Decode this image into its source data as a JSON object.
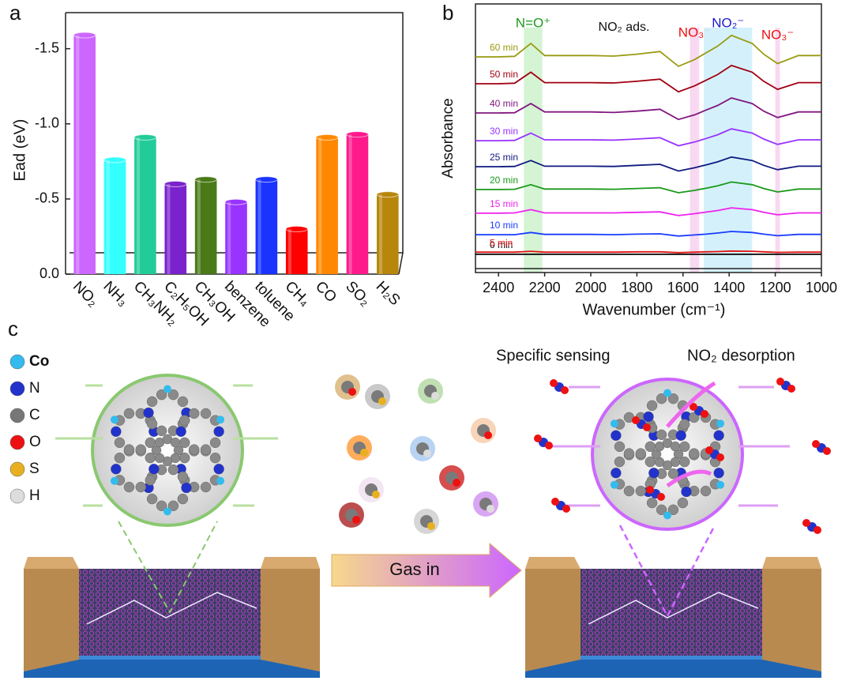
{
  "chart_data": [
    {
      "type": "bar",
      "panel_label": "a",
      "y_label": "Ead (eV)",
      "categories": [
        "NO₂",
        "NH₃",
        "CH₃NH₂",
        "C₂H₅OH",
        "CH₃OH",
        "benzene",
        "toluene",
        "CH₄",
        "CO",
        "SO₂",
        "H₂S"
      ],
      "values": [
        -1.59,
        -0.76,
        -0.91,
        -0.6,
        -0.63,
        -0.48,
        -0.63,
        -0.3,
        -0.91,
        -0.93,
        -0.53
      ],
      "colors": [
        "#cc66ff",
        "#33ffff",
        "#22cc99",
        "#7a22cc",
        "#4a7a18",
        "#9933ff",
        "#1a33ff",
        "#ff0000",
        "#ff8800",
        "#ff1a8c",
        "#b8860b"
      ],
      "ylim": [
        0,
        -1.74
      ],
      "yticks": [
        {
          "value": 0,
          "label": "0.0"
        },
        -0.5,
        {
          "value": -1,
          "label": "-1.0"
        },
        -1.5
      ]
    },
    {
      "type": "line",
      "panel_label": "b",
      "x_label": "Wavenumber (cm⁻¹)",
      "y_label": "Absorbance",
      "annotation": "NO₂ ads.",
      "x": [
        2500,
        2400,
        2330,
        2260,
        2200,
        2100,
        2000,
        1900,
        1800,
        1700,
        1620,
        1550,
        1500,
        1450,
        1390,
        1300,
        1250,
        1190,
        1100,
        1000
      ],
      "xlim": [
        2500,
        1000
      ],
      "xticks": [
        2400,
        2200,
        2000,
        1800,
        1600,
        1400,
        1200,
        1000
      ],
      "ylim": [
        0,
        10
      ],
      "bands": [
        {
          "label": "N=O⁺",
          "range": [
            2290,
            2210
          ],
          "color": "#ccf2cc",
          "label_color": "#1a9a1a"
        },
        {
          "label": "NO₃⁻",
          "range": [
            1570,
            1530
          ],
          "color": "#f7d2ee",
          "label_color": "#ee1111"
        },
        {
          "label": "NO₂⁻",
          "range": [
            1510,
            1300
          ],
          "color": "#cdeefa",
          "label_color": "#1a1acc"
        },
        {
          "label": "NO₃⁻",
          "range": [
            1200,
            1180
          ],
          "color": "#f7d2ee",
          "label_color": "#ee1111"
        }
      ],
      "series": [
        {
          "name": "0 min",
          "color": "#000000",
          "values": [
            0.68,
            0.68,
            0.68,
            0.68,
            0.68,
            0.68,
            0.68,
            0.68,
            0.68,
            0.68,
            0.68,
            0.68,
            0.68,
            0.68,
            0.68,
            0.68,
            0.68,
            0.68,
            0.68,
            0.68
          ]
        },
        {
          "name": "5 min",
          "color": "#e01010",
          "values": [
            0.76,
            0.76,
            0.76,
            0.79,
            0.76,
            0.76,
            0.76,
            0.76,
            0.77,
            0.77,
            0.74,
            0.76,
            0.77,
            0.78,
            0.8,
            0.79,
            0.77,
            0.75,
            0.76,
            0.76
          ]
        },
        {
          "name": "10 min",
          "color": "#1a3cff",
          "values": [
            1.41,
            1.41,
            1.41,
            1.49,
            1.42,
            1.42,
            1.42,
            1.41,
            1.43,
            1.44,
            1.36,
            1.4,
            1.43,
            1.47,
            1.53,
            1.49,
            1.43,
            1.37,
            1.42,
            1.42
          ]
        },
        {
          "name": "15 min",
          "color": "#ee22ee",
          "values": [
            2.21,
            2.21,
            2.22,
            2.34,
            2.22,
            2.22,
            2.22,
            2.22,
            2.24,
            2.26,
            2.12,
            2.19,
            2.25,
            2.31,
            2.41,
            2.34,
            2.24,
            2.15,
            2.22,
            2.22
          ]
        },
        {
          "name": "20 min",
          "color": "#1a9a1a",
          "values": [
            3.09,
            3.09,
            3.1,
            3.27,
            3.11,
            3.11,
            3.11,
            3.1,
            3.13,
            3.16,
            2.97,
            3.06,
            3.14,
            3.23,
            3.37,
            3.27,
            3.13,
            3.0,
            3.11,
            3.11
          ]
        },
        {
          "name": "25 min",
          "color": "#101a80",
          "values": [
            3.94,
            3.94,
            3.95,
            4.17,
            3.96,
            3.96,
            3.96,
            3.95,
            3.99,
            4.03,
            3.78,
            3.9,
            4.01,
            4.12,
            4.3,
            4.17,
            3.99,
            3.83,
            3.96,
            3.96
          ]
        },
        {
          "name": "30 min",
          "color": "#9933ff",
          "values": [
            4.91,
            4.91,
            4.92,
            5.19,
            4.94,
            4.94,
            4.94,
            4.93,
            4.97,
            5.02,
            4.72,
            4.86,
            4.99,
            5.13,
            5.35,
            5.19,
            4.97,
            4.77,
            4.94,
            4.94
          ]
        },
        {
          "name": "40 min",
          "color": "#801880",
          "values": [
            5.94,
            5.94,
            5.95,
            6.29,
            5.98,
            5.98,
            5.98,
            5.96,
            6.01,
            6.08,
            5.7,
            5.87,
            6.05,
            6.22,
            6.5,
            6.29,
            6.01,
            5.77,
            5.98,
            5.98
          ]
        },
        {
          "name": "50 min",
          "color": "#a00010",
          "values": [
            7.03,
            7.03,
            7.05,
            7.46,
            7.07,
            7.07,
            7.07,
            7.06,
            7.12,
            7.2,
            6.73,
            6.95,
            7.16,
            7.37,
            7.71,
            7.46,
            7.12,
            6.82,
            7.07,
            7.07
          ]
        },
        {
          "name": "60 min",
          "color": "#9a9a10",
          "values": [
            8.03,
            8.03,
            8.05,
            8.53,
            8.08,
            8.08,
            8.08,
            8.06,
            8.13,
            8.23,
            7.68,
            7.93,
            8.18,
            8.43,
            8.83,
            8.53,
            8.13,
            7.78,
            8.08,
            8.08
          ]
        }
      ]
    }
  ],
  "diagram": {
    "panel_label": "c",
    "legend": [
      {
        "label": "Co",
        "color": "#33bbee"
      },
      {
        "label": "N",
        "color": "#2233cc"
      },
      {
        "label": "C",
        "color": "#777777"
      },
      {
        "label": "O",
        "color": "#ee1111"
      },
      {
        "label": "S",
        "color": "#e8b020"
      },
      {
        "label": "H",
        "color": "#dddddd"
      }
    ],
    "sensing_label": "Specific sensing",
    "desorption_label": "NO₂ desorption",
    "arrow_label": "Gas in"
  }
}
